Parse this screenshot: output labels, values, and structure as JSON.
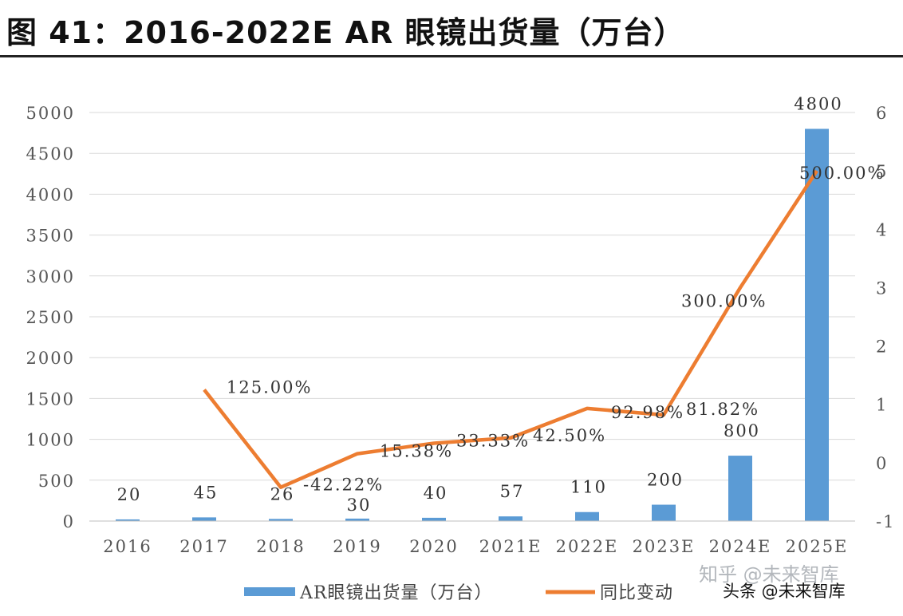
{
  "page_title": "图 41：2016-2022E AR 眼镜出货量（万台）",
  "watermark": {
    "line1": "知乎 @未来智库",
    "line2": "头条 @未来智库"
  },
  "colors": {
    "bar": "#5b9bd5",
    "line": "#ed7d31",
    "grid": "#d9d9d9"
  },
  "chart_data": {
    "type": "bar+line",
    "title": "图 41：2016-2022E AR 眼镜出货量（万台）",
    "categories": [
      "2016",
      "2017",
      "2018",
      "2019",
      "2020",
      "2021E",
      "2022E",
      "2023E",
      "2024E",
      "2025E"
    ],
    "series": [
      {
        "name": "AR眼镜出货量（万台）",
        "type": "bar",
        "axis": "left",
        "values": [
          20,
          45,
          26,
          30,
          40,
          57,
          110,
          200,
          800,
          4800
        ],
        "labels": [
          "20",
          "45",
          "26",
          "30",
          "40",
          "57",
          "110",
          "200",
          "800",
          "4800"
        ]
      },
      {
        "name": "同比变动",
        "type": "line",
        "axis": "right",
        "values": [
          null,
          1.25,
          -0.4222,
          0.1538,
          0.3333,
          0.425,
          0.9298,
          0.8182,
          3.0,
          5.0
        ],
        "labels": [
          "",
          "125.00%",
          "-42.22%",
          "15.38%",
          "33.33%",
          "42.50%",
          "92.98%",
          "81.82%",
          "300.00%",
          "500.00%"
        ]
      }
    ],
    "y_left": {
      "min": 0,
      "max": 5000,
      "ticks": [
        "0",
        "500",
        "1000",
        "1500",
        "2000",
        "2500",
        "3000",
        "3500",
        "4000",
        "4500",
        "5000"
      ]
    },
    "y_right": {
      "min": -1,
      "max": 6,
      "ticks": [
        "-1",
        "0",
        "1",
        "2",
        "3",
        "4",
        "5",
        "6"
      ]
    },
    "grid": true,
    "legend": "bottom"
  }
}
